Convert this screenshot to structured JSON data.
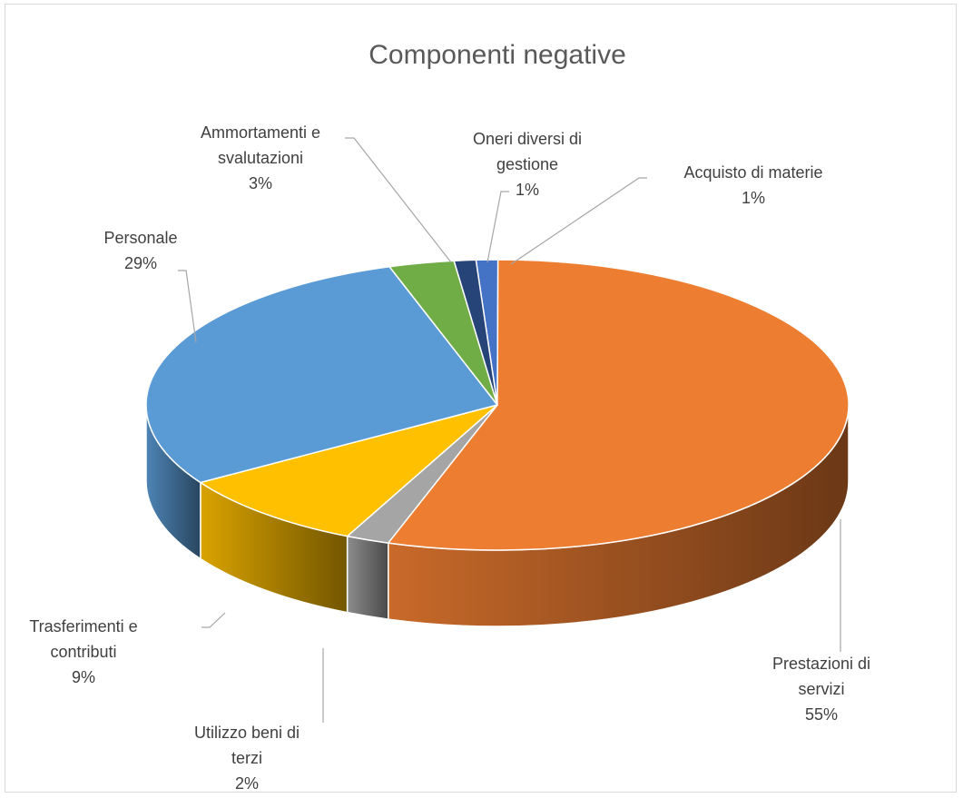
{
  "chart_data": {
    "type": "pie",
    "title": "Componenti negative",
    "slices": [
      {
        "label": [
          "Acquisto di materie"
        ],
        "pct_label": "1%",
        "value": 1,
        "color": "#4472c4"
      },
      {
        "label": [
          "Prestazioni di",
          "servizi"
        ],
        "pct_label": "55%",
        "value": 55,
        "color": "#ed7d31"
      },
      {
        "label": [
          "Utilizzo  beni di",
          "terzi"
        ],
        "pct_label": "2%",
        "value": 2,
        "color": "#a5a5a5"
      },
      {
        "label": [
          "Trasferimenti e",
          "contributi"
        ],
        "pct_label": "9%",
        "value": 9,
        "color": "#ffc000"
      },
      {
        "label": [
          "Personale"
        ],
        "pct_label": "29%",
        "value": 29,
        "color": "#5b9bd5"
      },
      {
        "label": [
          "Ammortamenti e",
          "svalutazioni"
        ],
        "pct_label": "3%",
        "value": 3,
        "color": "#70ad47"
      },
      {
        "label": [
          "Oneri diversi di",
          "gestione"
        ],
        "pct_label": "1%",
        "value": 1,
        "color": "#264478"
      }
    ],
    "style": "3d-pie",
    "legend": "none",
    "data_labels": "outside-with-leader-lines"
  }
}
